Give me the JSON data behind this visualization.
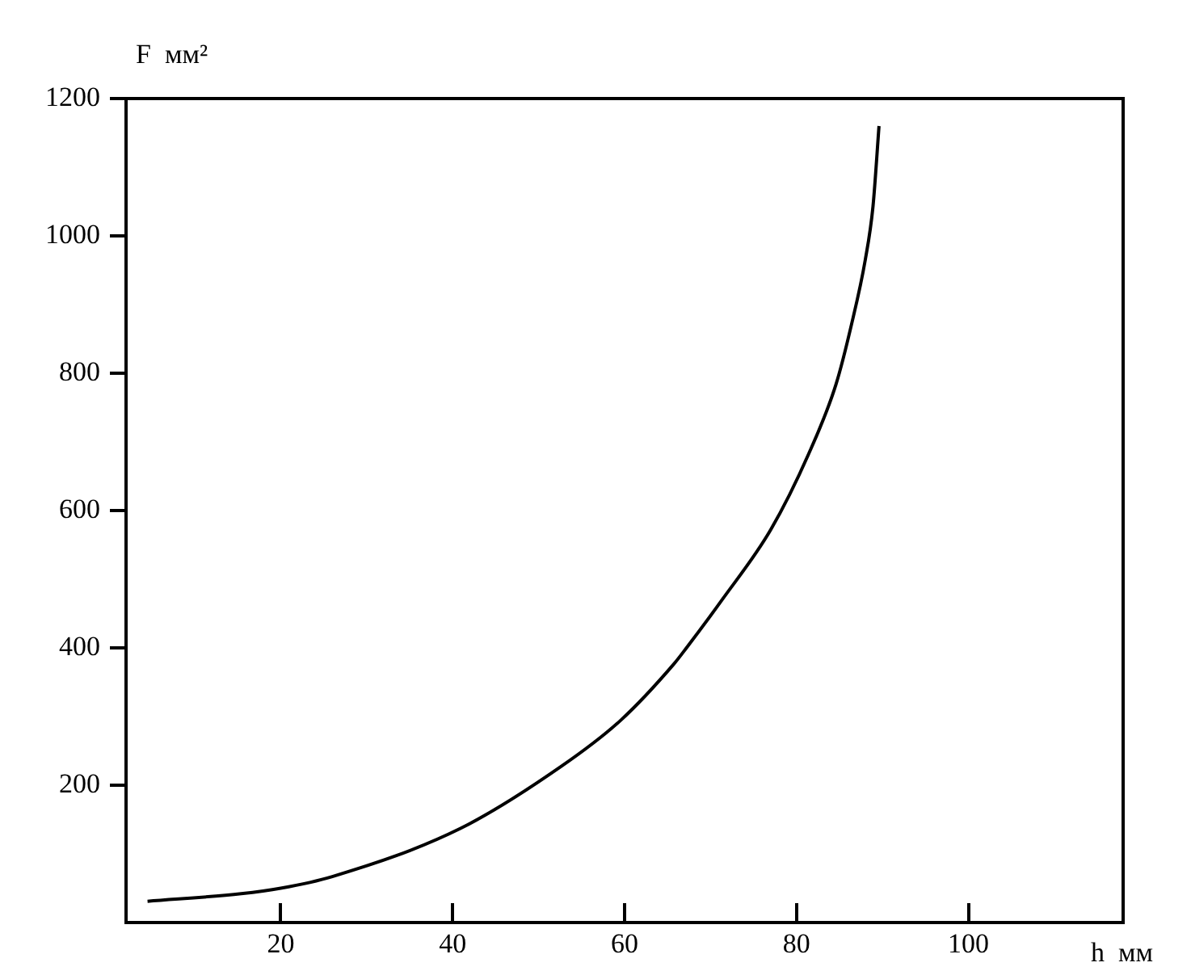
{
  "chart_data": {
    "type": "line",
    "xlabel": "h  мм",
    "ylabel": "F  мм²",
    "x": [
      4.5,
      15.4,
      20,
      26,
      40.9,
      52.7,
      59.5,
      65.7,
      67.2,
      71.4,
      77,
      81.4,
      84.6,
      86.4,
      88,
      88.9,
      89.6
    ],
    "series": [
      {
        "color": "#000000",
        "values": [
          31,
          42,
          50,
          67,
          137,
          228,
          294,
          376,
          400,
          471,
          572,
          682,
          784,
          871,
          965,
          1043,
          1160
        ]
      }
    ],
    "xlim": [
      2,
      118
    ],
    "xticks": [
      20,
      40,
      60,
      80,
      100
    ],
    "ylim": [
      0,
      1200
    ],
    "yticks": [
      {
        "value": 200,
        "label": "200"
      },
      {
        "value": 400,
        "label": "400"
      },
      {
        "value": 600,
        "label": "600"
      },
      {
        "value": 800,
        "label": "800"
      },
      {
        "value": 1000,
        "label": "1000"
      },
      {
        "value": 1200,
        "label": "1200"
      }
    ],
    "grid": false,
    "legend": false,
    "marker": "none",
    "line_style": "solid"
  }
}
